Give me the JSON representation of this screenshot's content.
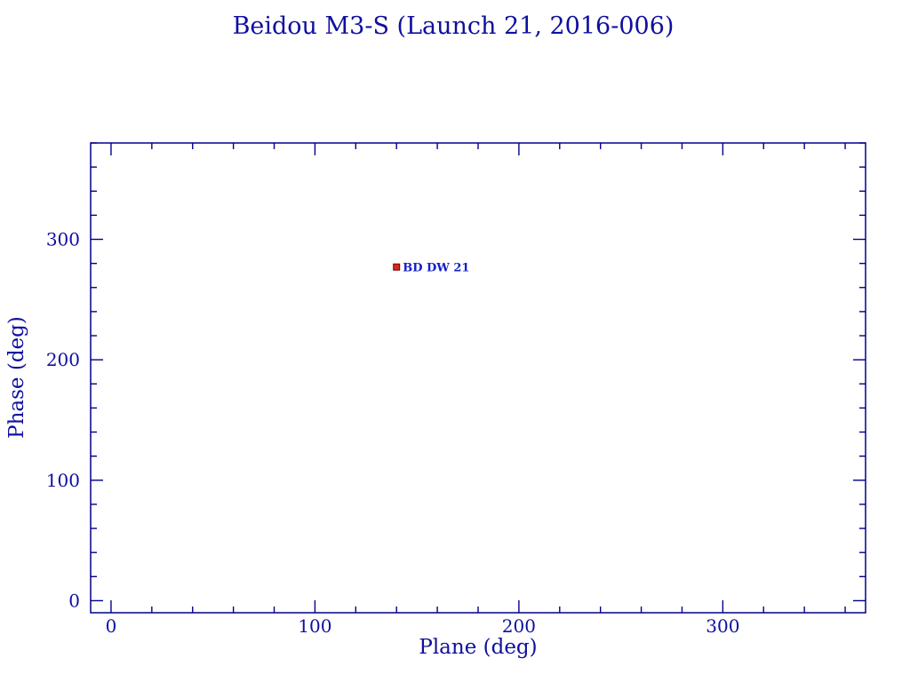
{
  "page": {
    "background_color": "#ffffff"
  },
  "chart_data": {
    "type": "scatter",
    "title": "Beidou M3-S (Launch 21, 2016-006)",
    "xlabel": "Plane (deg)",
    "ylabel": "Phase (deg)",
    "xlim": [
      -10,
      370
    ],
    "ylim": [
      -10,
      380
    ],
    "xticks_major": [
      0,
      100,
      200,
      300
    ],
    "yticks_major": [
      0,
      100,
      200,
      300
    ],
    "xtick_labels": [
      "0",
      "100",
      "200",
      "300"
    ],
    "ytick_labels": [
      "0",
      "100",
      "200",
      "300"
    ],
    "minor_tick_interval": 20,
    "grid": false,
    "legend": "none",
    "tick_style": "inward, all four sides, majors longer than minors",
    "colors": {
      "axis": "#00008b",
      "tick_label": "#0f0f9f",
      "title": "#0f0f9f",
      "marker_fill": "#d22a22",
      "marker_edge": "#7a0000",
      "point_label": "#1520c8"
    },
    "points": [
      {
        "label": "BD DW 21",
        "plane": 140,
        "phase": 277,
        "marker": "square"
      }
    ]
  }
}
